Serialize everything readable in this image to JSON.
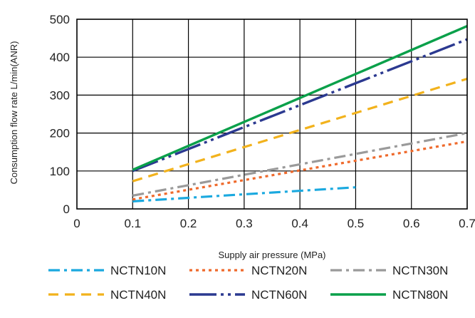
{
  "chart_data": {
    "type": "line",
    "xlabel": "Supply air pressure (MPa)",
    "ylabel": "Consumption flow rate   L/min(ANR)",
    "xlim": [
      0,
      0.7
    ],
    "ylim": [
      0,
      500
    ],
    "x_ticks": [
      "0",
      "0.1",
      "0.2",
      "0.3",
      "0.4",
      "0.5",
      "0.6",
      "0.7"
    ],
    "y_ticks": [
      "0",
      "100",
      "200",
      "300",
      "400",
      "500"
    ],
    "x_tick_values": [
      0,
      0.1,
      0.2,
      0.3,
      0.4,
      0.5,
      0.6,
      0.7
    ],
    "y_tick_values": [
      0,
      100,
      200,
      300,
      400,
      500
    ],
    "grid": true,
    "legend_position": "bottom",
    "series": [
      {
        "name": "NCTN10N",
        "color": "#1ba9df",
        "dash": "dash-dot",
        "x": [
          0.1,
          0.5
        ],
        "y": [
          20,
          57
        ]
      },
      {
        "name": "NCTN20N",
        "color": "#ef6a2c",
        "dash": "dotted",
        "x": [
          0.1,
          0.7
        ],
        "y": [
          25,
          178
        ]
      },
      {
        "name": "NCTN30N",
        "color": "#9a9a9a",
        "dash": "dash-dot",
        "x": [
          0.1,
          0.7
        ],
        "y": [
          35,
          200
        ]
      },
      {
        "name": "NCTN40N",
        "color": "#f2b21c",
        "dash": "dashed",
        "x": [
          0.1,
          0.7
        ],
        "y": [
          73,
          343
        ]
      },
      {
        "name": "NCTN60N",
        "color": "#2b3990",
        "dash": "dash-dot-dot",
        "x": [
          0.1,
          0.7
        ],
        "y": [
          100,
          447
        ]
      },
      {
        "name": "NCTN80N",
        "color": "#0aa04a",
        "dash": "solid",
        "x": [
          0.1,
          0.7
        ],
        "y": [
          103,
          482
        ]
      }
    ]
  }
}
